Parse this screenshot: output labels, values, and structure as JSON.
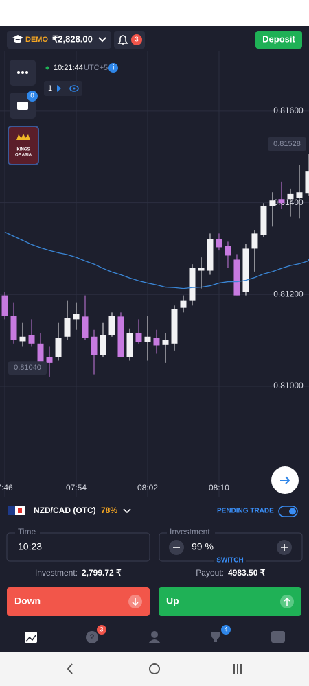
{
  "header": {
    "demo_label": "DEMO",
    "balance": "₹2,828.00",
    "notifications": "3",
    "deposit": "Deposit"
  },
  "sidebar": {
    "portfolio_badge": "0",
    "promo": [
      "KINGS",
      "OF ASIA"
    ]
  },
  "chart_info": {
    "clock": "10:21:44",
    "timezone": "UTC+5",
    "open_trades": "1"
  },
  "chart_data": {
    "type": "candlestick",
    "open": [
      0.81198,
      0.81153,
      0.81098,
      0.81111,
      0.81093,
      0.81063,
      0.81063,
      0.81108,
      0.81146,
      0.81152,
      0.81108,
      0.81068,
      0.81111,
      0.81152,
      0.81063,
      0.81116,
      0.81096,
      0.81105,
      0.8109,
      0.81093,
      0.81171,
      0.81186,
      0.81252,
      0.81252,
      0.81321,
      0.81306,
      0.81276,
      0.81206,
      0.813,
      0.8133,
      0.81393,
      0.81408,
      0.81408,
      0.81411,
      0.8142
    ],
    "high": [
      0.81206,
      0.81183,
      0.81138,
      0.81146,
      0.81116,
      0.81086,
      0.81138,
      0.81186,
      0.81183,
      0.81198,
      0.81123,
      0.81138,
      0.81161,
      0.81161,
      0.81126,
      0.81146,
      0.81153,
      0.81123,
      0.81116,
      0.81176,
      0.81198,
      0.81266,
      0.81281,
      0.81333,
      0.81333,
      0.81315,
      0.81288,
      0.81311,
      0.8134,
      0.81399,
      0.81423,
      0.81446,
      0.81431,
      0.81483,
      0.81506
    ],
    "low": [
      0.81146,
      0.81093,
      0.81086,
      0.81086,
      0.81033,
      0.81021,
      0.81056,
      0.81101,
      0.81123,
      0.81101,
      0.81026,
      0.81063,
      0.81108,
      0.81063,
      0.81056,
      0.81093,
      0.81056,
      0.81071,
      0.81051,
      0.81078,
      0.81161,
      0.81176,
      0.81213,
      0.81243,
      0.81296,
      0.81258,
      0.81198,
      0.81198,
      0.8125,
      0.81326,
      0.81348,
      0.81386,
      0.8137,
      0.81366,
      0.81416
    ],
    "close": [
      0.81153,
      0.81101,
      0.81108,
      0.81093,
      0.81048,
      0.81051,
      0.81105,
      0.81149,
      0.81158,
      0.81105,
      0.81068,
      0.81111,
      0.81153,
      0.81063,
      0.81116,
      0.81096,
      0.81108,
      0.81089,
      0.81101,
      0.81168,
      0.81186,
      0.81258,
      0.81258,
      0.81321,
      0.81303,
      0.81285,
      0.81198,
      0.813,
      0.81333,
      0.81393,
      0.81405,
      0.81399,
      0.81419,
      0.81423,
      0.81468
    ],
    "ma": [
      0.81336,
      0.81327,
      0.81318,
      0.81309,
      0.81302,
      0.81296,
      0.81291,
      0.81287,
      0.81281,
      0.81273,
      0.81266,
      0.81257,
      0.81249,
      0.81243,
      0.81236,
      0.8123,
      0.81225,
      0.81221,
      0.81216,
      0.81215,
      0.81213,
      0.81215,
      0.81216,
      0.81219,
      0.81225,
      0.81228,
      0.81228,
      0.81231,
      0.81237,
      0.81245,
      0.8125,
      0.81257,
      0.81263,
      0.81267,
      0.81273
    ],
    "up_color": "#f2f2f4",
    "down_color": "#c77ae0",
    "ma_color": "#3a86d6",
    "ylim": [
      0.80795,
      0.8173
    ],
    "yticks": [
      {
        "value": 0.81,
        "label": "0.81000"
      },
      {
        "value": 0.812,
        "label": "0.81200"
      },
      {
        "value": 0.814,
        "label": "0.81400"
      },
      {
        "value": 0.816,
        "label": "0.81600"
      }
    ],
    "xlim": [
      -0.54,
      34.08
    ],
    "xticks": [
      {
        "value": 0,
        "label": "7:46"
      },
      {
        "value": 8,
        "label": "07:54"
      },
      {
        "value": 16,
        "label": "08:02"
      },
      {
        "value": 24,
        "label": "08:10"
      }
    ],
    "price_labels": [
      {
        "value": 0.81528,
        "label": "0.81528"
      },
      {
        "value": 0.8104,
        "label": "0.81040"
      }
    ],
    "grid": true
  },
  "trade": {
    "asset": "NZD/CAD (OTC)",
    "asset_payout": "78%",
    "pending": "PENDING TRADE",
    "time_label": "Time",
    "time_value": "10:23",
    "investment_label": "Investment",
    "investment_value": "99 %",
    "switch": "SWITCH",
    "investment_summary_label": "Investment:",
    "investment_summary_value": "2,799.72 ₹",
    "payout_label": "Payout:",
    "payout_value": "4983.50 ₹",
    "down": "Down",
    "up": "Up"
  },
  "nav": {
    "support_badge": "3",
    "trophy_badge": "4"
  }
}
